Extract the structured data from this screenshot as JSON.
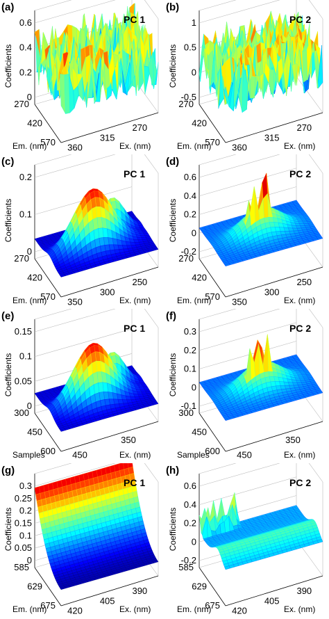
{
  "chart_data": [
    {
      "type": "surface",
      "panel": "(a)",
      "title": "PC 1",
      "zlabel": "Coefficients",
      "xlabel": "Em. (nm)",
      "ylabel": "Ex. (nm)",
      "zticks": [
        "0.6",
        "0.4",
        "0.2",
        "0"
      ],
      "xticks": [
        "270",
        "420",
        "570"
      ],
      "yticks": [
        "360",
        "315",
        "270"
      ],
      "zlim": [
        0,
        0.7
      ],
      "style": "noisy-ridges"
    },
    {
      "type": "surface",
      "panel": "(b)",
      "title": "PC 2",
      "zlabel": "Coefficients",
      "xlabel": "Em. (nm)",
      "ylabel": "Ex. (nm)",
      "zticks": [
        "1",
        "0.5",
        "0",
        "-0.5"
      ],
      "xticks": [
        "270",
        "420",
        "570"
      ],
      "yticks": [
        "360",
        "315",
        "270"
      ],
      "zlim": [
        -0.6,
        1
      ],
      "style": "noisy-ridges"
    },
    {
      "type": "surface",
      "panel": "(c)",
      "title": "PC 1",
      "zlabel": "Coefficients",
      "xlabel": "Em. (nm)",
      "ylabel": "Ex. (nm)",
      "zticks": [
        "0.2",
        "0.1",
        "0"
      ],
      "xticks": [
        "270",
        "420",
        "570"
      ],
      "yticks": [
        "350",
        "300",
        "250"
      ],
      "zlim": [
        -0.03,
        0.22
      ],
      "style": "broad-peak"
    },
    {
      "type": "surface",
      "panel": "(d)",
      "title": "PC 2",
      "zlabel": "Coefficients",
      "xlabel": "Em. (nm)",
      "ylabel": "Ex. (nm)",
      "zticks": [
        "0.6",
        "0.4",
        "0.2",
        "0",
        "-0.2"
      ],
      "xticks": [
        "270",
        "420",
        "570"
      ],
      "yticks": [
        "350",
        "300",
        "250"
      ],
      "zlim": [
        -0.25,
        0.75
      ],
      "style": "spikes"
    },
    {
      "type": "surface",
      "panel": "(e)",
      "title": "PC 1",
      "zlabel": "Coefficients",
      "xlabel": "Samples",
      "ylabel": "Ex. (nm)",
      "zticks": [
        "0.15",
        "0.1",
        "0.05",
        "0"
      ],
      "xticks": [
        "300",
        "450",
        "600"
      ],
      "yticks": [
        "450",
        "350"
      ],
      "zlim": [
        -0.02,
        0.18
      ],
      "style": "broad-peak"
    },
    {
      "type": "surface",
      "panel": "(f)",
      "title": "PC 2",
      "zlabel": "Coefficients",
      "xlabel": "Samples",
      "ylabel": "Ex. (nm)",
      "zticks": [
        "0.3",
        "0.2",
        "0.1",
        "0",
        "-0.1"
      ],
      "xticks": [
        "300",
        "450",
        "600"
      ],
      "yticks": [
        "450",
        "350"
      ],
      "zlim": [
        -0.15,
        0.35
      ],
      "style": "spikes"
    },
    {
      "type": "surface",
      "panel": "(g)",
      "title": "PC 1",
      "zlabel": "Coefficients",
      "xlabel": "Em. (nm)",
      "ylabel": "Ex. (nm)",
      "zticks": [
        "0.3",
        "0.25",
        "0.2",
        "0.15",
        "0.1",
        "0.05",
        "0"
      ],
      "xticks": [
        "585",
        "629",
        "675"
      ],
      "yticks": [
        "420",
        "405",
        "390"
      ],
      "zlim": [
        0,
        0.33
      ],
      "style": "smooth-slope"
    },
    {
      "type": "surface",
      "panel": "(h)",
      "title": "PC 2",
      "zlabel": "Coefficients",
      "xlabel": "Em. (nm)",
      "ylabel": "Ex. (nm)",
      "zticks": [
        "0.6",
        "0.4",
        "0.2",
        "0",
        "-0.2"
      ],
      "xticks": [
        "585",
        "629",
        "675"
      ],
      "yticks": [
        "420",
        "405",
        "390"
      ],
      "zlim": [
        -0.25,
        0.7
      ],
      "style": "edge-spikes"
    }
  ]
}
